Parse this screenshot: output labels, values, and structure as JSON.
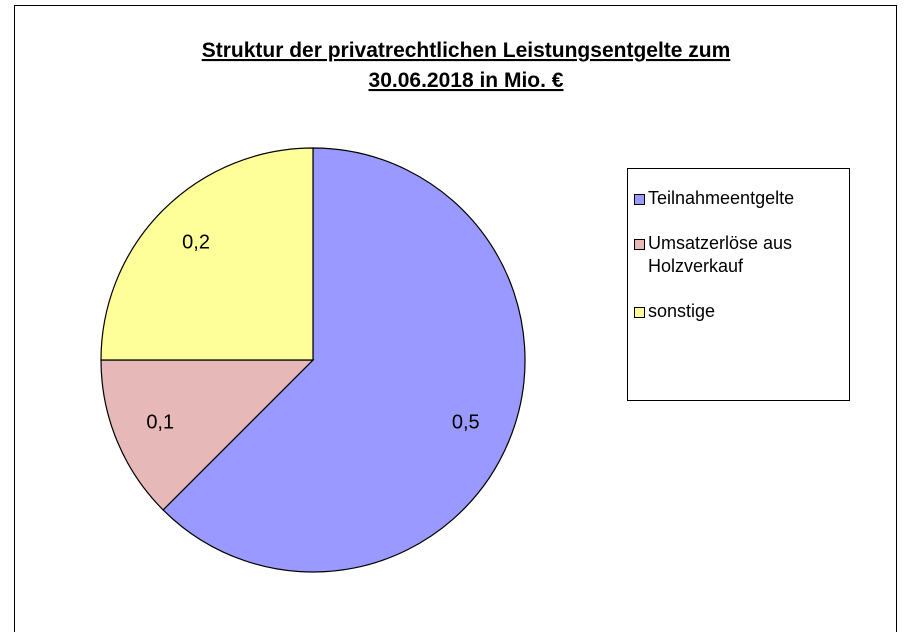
{
  "chart_data": {
    "type": "pie",
    "title": [
      "Struktur der privatrechtlichen Leistungsentgelte zum",
      "30.06.2018 in Mio. €"
    ],
    "categories": [
      "Teilnahmeentgelte",
      "Umsatzerlöse aus Holzverkauf",
      "sonstige"
    ],
    "values": [
      0.5,
      0.1,
      0.2
    ],
    "value_labels": [
      "0,5",
      "0,1",
      "0,2"
    ],
    "colors": [
      "#9999ff",
      "#e6b8b7",
      "#ffff99"
    ],
    "legend": "right"
  }
}
